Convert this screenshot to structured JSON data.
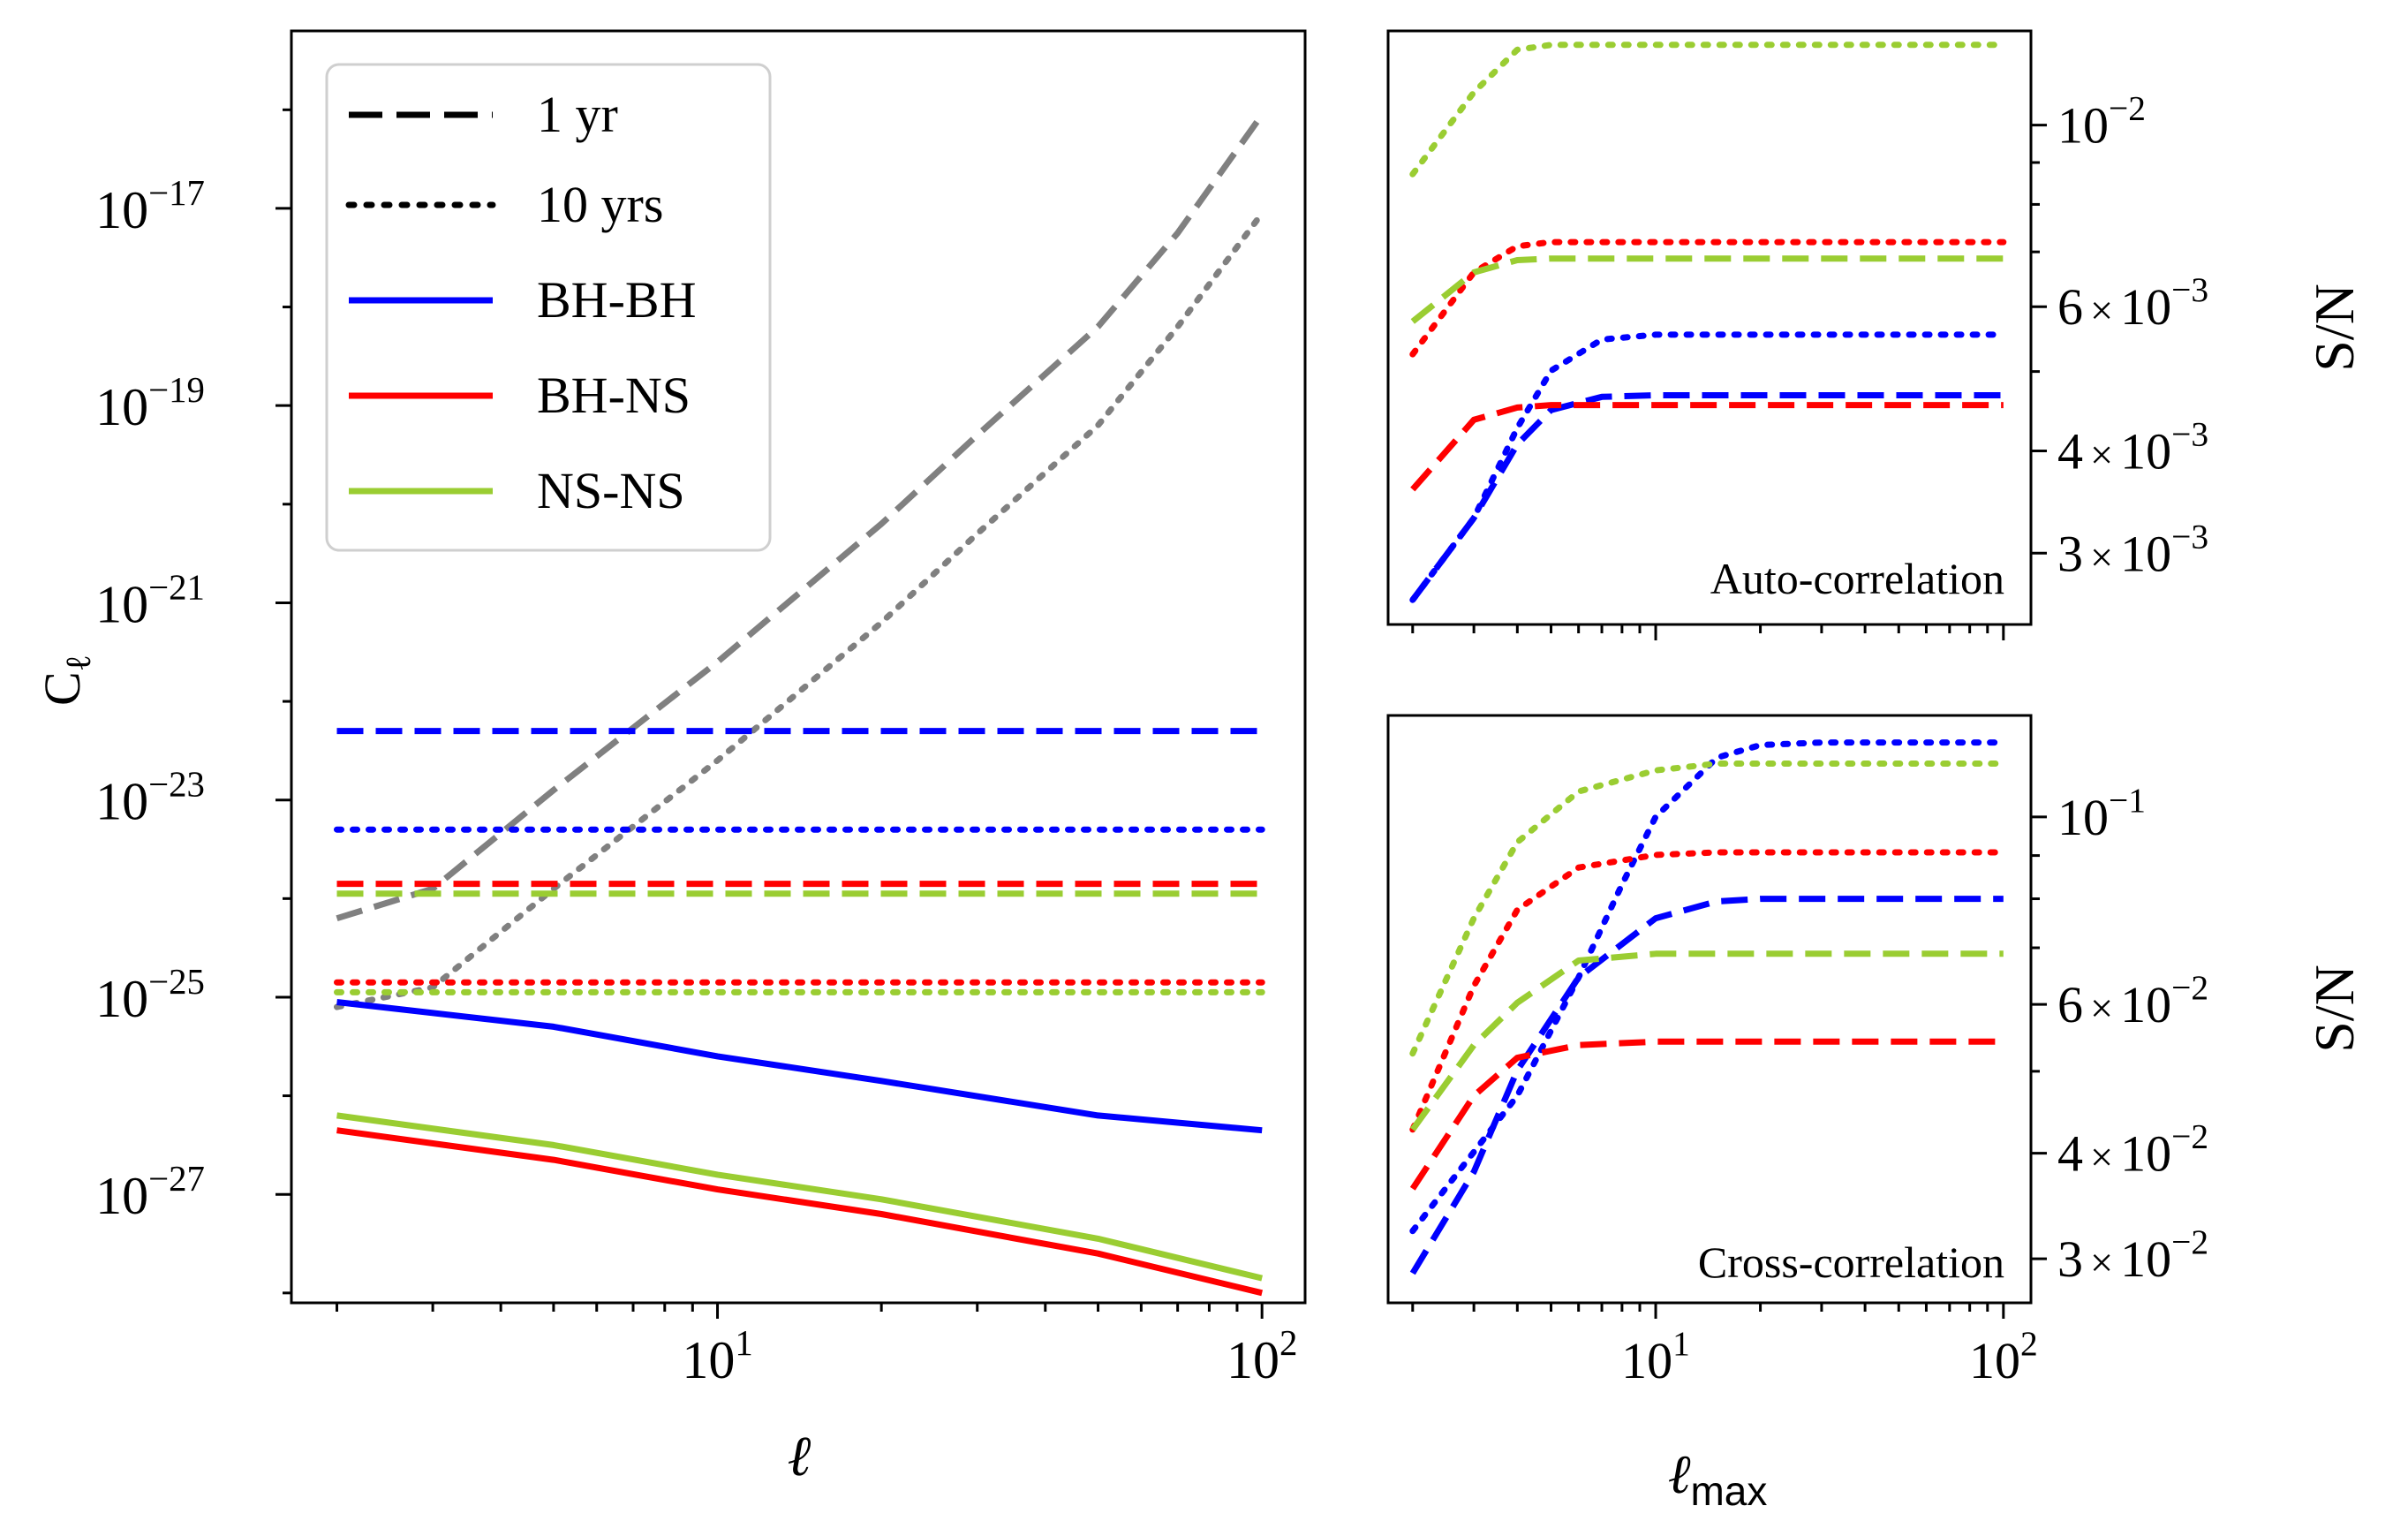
{
  "colors": {
    "BH-BH": "#0000ff",
    "BH-NS": "#ff0000",
    "NS-NS": "#9acd32",
    "noise": "#808080",
    "legend_key": "#000000"
  },
  "legend": {
    "entries": [
      {
        "label": "1 yr",
        "style": "dashed",
        "color": "#000000"
      },
      {
        "label": "10 yrs",
        "style": "dotted",
        "color": "#000000"
      },
      {
        "label": "BH-BH",
        "style": "solid",
        "color": "#0000ff"
      },
      {
        "label": "BH-NS",
        "style": "solid",
        "color": "#ff0000"
      },
      {
        "label": "NS-NS",
        "style": "solid",
        "color": "#9acd32"
      }
    ]
  },
  "chart_data": [
    {
      "id": "power-spectrum",
      "type": "line",
      "xscale": "log",
      "yscale": "log",
      "xlabel": "ℓ",
      "ylabel": "C_ℓ",
      "xlim": [
        1.65,
        120
      ],
      "ylim_log10": [
        -28.1,
        -15.2
      ],
      "xticks": [
        {
          "value": 10,
          "base": "10",
          "exp": "1"
        },
        {
          "value": 100,
          "base": "10",
          "exp": "2"
        }
      ],
      "yticks": [
        {
          "log10": -17,
          "base": "10",
          "exp": "−17"
        },
        {
          "log10": -19,
          "base": "10",
          "exp": "−19"
        },
        {
          "log10": -21,
          "base": "10",
          "exp": "−21"
        },
        {
          "log10": -23,
          "base": "10",
          "exp": "−23"
        },
        {
          "log10": -25,
          "base": "10",
          "exp": "−25"
        },
        {
          "log10": -27,
          "base": "10",
          "exp": "−27"
        }
      ],
      "legend_position": "upper-left",
      "series": [
        {
          "name": "noise 1 yr",
          "color_key": "noise",
          "style": "dashed",
          "x": [
            2,
            3,
            5,
            10,
            20,
            30,
            50,
            70,
            100
          ],
          "log10_y": [
            -24.2,
            -23.9,
            -22.9,
            -21.6,
            -20.2,
            -19.3,
            -18.2,
            -17.25,
            -16.05
          ]
        },
        {
          "name": "noise 10 yrs",
          "color_key": "noise",
          "style": "dotted",
          "x": [
            2,
            3,
            5,
            10,
            20,
            30,
            50,
            70,
            100
          ],
          "log10_y": [
            -25.1,
            -24.9,
            -23.9,
            -22.6,
            -21.2,
            -20.3,
            -19.2,
            -18.2,
            -17.05
          ]
        },
        {
          "name": "BH-BH 1 yr",
          "color_key": "BH-BH",
          "style": "dashed",
          "x": [
            2,
            100
          ],
          "log10_y": [
            -22.3,
            -22.3
          ]
        },
        {
          "name": "BH-BH 10 yrs",
          "color_key": "BH-BH",
          "style": "dotted",
          "x": [
            2,
            100
          ],
          "log10_y": [
            -23.3,
            -23.3
          ]
        },
        {
          "name": "BH-NS 1 yr",
          "color_key": "BH-NS",
          "style": "dashed",
          "x": [
            2,
            100
          ],
          "log10_y": [
            -23.85,
            -23.85
          ]
        },
        {
          "name": "NS-NS 1 yr",
          "color_key": "NS-NS",
          "style": "dashed",
          "x": [
            2,
            100
          ],
          "log10_y": [
            -23.95,
            -23.95
          ]
        },
        {
          "name": "BH-NS 10 yrs",
          "color_key": "BH-NS",
          "style": "dotted",
          "x": [
            2,
            100
          ],
          "log10_y": [
            -24.85,
            -24.85
          ]
        },
        {
          "name": "NS-NS 10 yrs",
          "color_key": "NS-NS",
          "style": "dotted",
          "x": [
            2,
            100
          ],
          "log10_y": [
            -24.95,
            -24.95
          ]
        },
        {
          "name": "BH-BH signal",
          "color_key": "BH-BH",
          "style": "solid",
          "x": [
            2,
            5,
            10,
            20,
            50,
            100
          ],
          "log10_y": [
            -25.05,
            -25.3,
            -25.6,
            -25.85,
            -26.2,
            -26.35
          ]
        },
        {
          "name": "NS-NS signal",
          "color_key": "NS-NS",
          "style": "solid",
          "x": [
            2,
            5,
            10,
            20,
            50,
            100
          ],
          "log10_y": [
            -26.2,
            -26.5,
            -26.8,
            -27.05,
            -27.45,
            -27.85
          ]
        },
        {
          "name": "BH-NS signal",
          "color_key": "BH-NS",
          "style": "solid",
          "x": [
            2,
            5,
            10,
            20,
            50,
            100
          ],
          "log10_y": [
            -26.35,
            -26.65,
            -26.95,
            -27.2,
            -27.6,
            -28.0
          ]
        }
      ]
    },
    {
      "id": "auto-correlation",
      "type": "line",
      "title": "Auto-correlation",
      "xscale": "log",
      "yscale": "log",
      "xlabel": "",
      "ylabel": "S/N",
      "xlim": [
        1.7,
        120
      ],
      "ylim_log10": [
        -2.61,
        -1.885
      ],
      "yticks": [
        {
          "log10": -2,
          "base": "10",
          "exp": "−2"
        },
        {
          "log10": -2.2218,
          "base": "6×10",
          "exp": "−3"
        },
        {
          "log10": -2.3979,
          "base": "4×10",
          "exp": "−3"
        },
        {
          "log10": -2.5229,
          "base": "3×10",
          "exp": "−3"
        }
      ],
      "series": [
        {
          "name": "NS-NS 10 yrs",
          "color_key": "NS-NS",
          "style": "dotted",
          "x": [
            2,
            3,
            4,
            5,
            100
          ],
          "log10_y": [
            -2.06,
            -1.96,
            -1.908,
            -1.902,
            -1.902
          ]
        },
        {
          "name": "BH-NS 10 yrs",
          "color_key": "BH-NS",
          "style": "dotted",
          "x": [
            2,
            3,
            4,
            5,
            100
          ],
          "log10_y": [
            -2.28,
            -2.18,
            -2.148,
            -2.143,
            -2.143
          ]
        },
        {
          "name": "NS-NS 1 yr",
          "color_key": "NS-NS",
          "style": "dashed",
          "x": [
            2,
            3,
            4,
            5,
            100
          ],
          "log10_y": [
            -2.24,
            -2.18,
            -2.165,
            -2.163,
            -2.163
          ]
        },
        {
          "name": "BH-BH 10 yrs",
          "color_key": "BH-BH",
          "style": "dotted",
          "x": [
            2,
            3,
            4,
            5,
            7,
            10,
            100
          ],
          "log10_y": [
            -2.58,
            -2.48,
            -2.37,
            -2.3,
            -2.262,
            -2.256,
            -2.256
          ]
        },
        {
          "name": "BH-BH 1 yr",
          "color_key": "BH-BH",
          "style": "dashed",
          "x": [
            2,
            3,
            4,
            5,
            7,
            10,
            100
          ],
          "log10_y": [
            -2.58,
            -2.48,
            -2.39,
            -2.348,
            -2.332,
            -2.33,
            -2.33
          ]
        },
        {
          "name": "BH-NS 1 yr",
          "color_key": "BH-NS",
          "style": "dashed",
          "x": [
            2,
            3,
            4,
            5,
            100
          ],
          "log10_y": [
            -2.445,
            -2.36,
            -2.345,
            -2.342,
            -2.342
          ]
        }
      ]
    },
    {
      "id": "cross-correlation",
      "type": "line",
      "title": "Cross-correlation",
      "xscale": "log",
      "yscale": "log",
      "xlabel": "ℓ_max",
      "ylabel": "S/N",
      "xlim": [
        1.7,
        120
      ],
      "ylim_log10": [
        -1.575,
        -0.88
      ],
      "xticks": [
        {
          "value": 10,
          "base": "10",
          "exp": "1"
        },
        {
          "value": 100,
          "base": "10",
          "exp": "2"
        }
      ],
      "yticks": [
        {
          "log10": -1,
          "base": "10",
          "exp": "−1"
        },
        {
          "log10": -1.2218,
          "base": "6×10",
          "exp": "−2"
        },
        {
          "log10": -1.3979,
          "base": "4×10",
          "exp": "−2"
        },
        {
          "log10": -1.5229,
          "base": "3×10",
          "exp": "−2"
        }
      ],
      "series": [
        {
          "name": "BH-BH 10 yrs",
          "color_key": "BH-BH",
          "style": "dotted",
          "x": [
            2,
            4,
            6,
            8,
            10,
            15,
            20,
            30,
            100
          ],
          "log10_y": [
            -1.49,
            -1.33,
            -1.19,
            -1.08,
            -1.0,
            -0.93,
            -0.915,
            -0.912,
            -0.912
          ]
        },
        {
          "name": "NS-NS 10 yrs",
          "color_key": "NS-NS",
          "style": "dotted",
          "x": [
            2,
            3,
            4,
            6,
            10,
            15,
            100
          ],
          "log10_y": [
            -1.28,
            -1.12,
            -1.03,
            -0.97,
            -0.945,
            -0.937,
            -0.937
          ]
        },
        {
          "name": "BH-NS 10 yrs",
          "color_key": "BH-NS",
          "style": "dotted",
          "x": [
            2,
            3,
            4,
            6,
            10,
            15,
            100
          ],
          "log10_y": [
            -1.37,
            -1.2,
            -1.11,
            -1.06,
            -1.045,
            -1.042,
            -1.042
          ]
        },
        {
          "name": "BH-BH 1 yr",
          "color_key": "BH-BH",
          "style": "dashed",
          "x": [
            2,
            3,
            4,
            6,
            10,
            15,
            20,
            100
          ],
          "log10_y": [
            -1.54,
            -1.42,
            -1.3,
            -1.19,
            -1.12,
            -1.1,
            -1.097,
            -1.097
          ]
        },
        {
          "name": "NS-NS 1 yr",
          "color_key": "NS-NS",
          "style": "dashed",
          "x": [
            2,
            3,
            4,
            6,
            10,
            100
          ],
          "log10_y": [
            -1.37,
            -1.27,
            -1.22,
            -1.17,
            -1.162,
            -1.162
          ]
        },
        {
          "name": "BH-NS 1 yr",
          "color_key": "BH-NS",
          "style": "dashed",
          "x": [
            2,
            3,
            4,
            6,
            10,
            100
          ],
          "log10_y": [
            -1.44,
            -1.33,
            -1.285,
            -1.27,
            -1.266,
            -1.266
          ]
        }
      ]
    }
  ]
}
